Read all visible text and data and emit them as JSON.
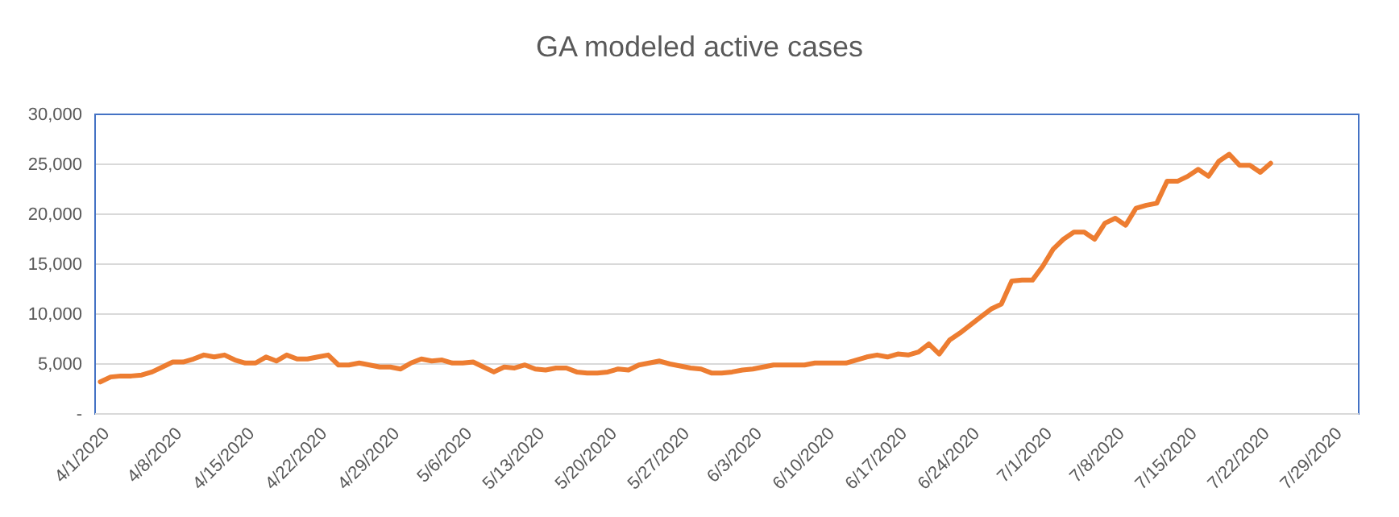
{
  "chart_data": {
    "type": "line",
    "title": "GA modeled active cases",
    "x": [
      "2020-03-31",
      "2020-04-01",
      "2020-04-02",
      "2020-04-03",
      "2020-04-04",
      "2020-04-05",
      "2020-04-06",
      "2020-04-07",
      "2020-04-08",
      "2020-04-09",
      "2020-04-10",
      "2020-04-11",
      "2020-04-12",
      "2020-04-13",
      "2020-04-14",
      "2020-04-15",
      "2020-04-16",
      "2020-04-17",
      "2020-04-18",
      "2020-04-19",
      "2020-04-20",
      "2020-04-21",
      "2020-04-22",
      "2020-04-23",
      "2020-04-24",
      "2020-04-25",
      "2020-04-26",
      "2020-04-27",
      "2020-04-28",
      "2020-04-29",
      "2020-04-30",
      "2020-05-01",
      "2020-05-02",
      "2020-05-03",
      "2020-05-04",
      "2020-05-05",
      "2020-05-06",
      "2020-05-07",
      "2020-05-08",
      "2020-05-09",
      "2020-05-10",
      "2020-05-11",
      "2020-05-12",
      "2020-05-13",
      "2020-05-14",
      "2020-05-15",
      "2020-05-16",
      "2020-05-17",
      "2020-05-18",
      "2020-05-19",
      "2020-05-20",
      "2020-05-21",
      "2020-05-22",
      "2020-05-23",
      "2020-05-24",
      "2020-05-25",
      "2020-05-26",
      "2020-05-27",
      "2020-05-28",
      "2020-05-29",
      "2020-05-30",
      "2020-05-31",
      "2020-06-01",
      "2020-06-02",
      "2020-06-03",
      "2020-06-04",
      "2020-06-05",
      "2020-06-06",
      "2020-06-07",
      "2020-06-08",
      "2020-06-09",
      "2020-06-10",
      "2020-06-11",
      "2020-06-12",
      "2020-06-13",
      "2020-06-14",
      "2020-06-15",
      "2020-06-16",
      "2020-06-17",
      "2020-06-18",
      "2020-06-19",
      "2020-06-20",
      "2020-06-21",
      "2020-06-22",
      "2020-06-23",
      "2020-06-24",
      "2020-06-25",
      "2020-06-26",
      "2020-06-27",
      "2020-06-28",
      "2020-06-29",
      "2020-06-30",
      "2020-07-01",
      "2020-07-02",
      "2020-07-03",
      "2020-07-04",
      "2020-07-05",
      "2020-07-06",
      "2020-07-07",
      "2020-07-08",
      "2020-07-09",
      "2020-07-10",
      "2020-07-11",
      "2020-07-12",
      "2020-07-13",
      "2020-07-14",
      "2020-07-15",
      "2020-07-16",
      "2020-07-17",
      "2020-07-18",
      "2020-07-19",
      "2020-07-20",
      "2020-07-21",
      "2020-07-22"
    ],
    "series": [
      {
        "color": "#ed7d31",
        "values": [
          3200,
          3700,
          3800,
          3800,
          3900,
          4200,
          4700,
          5200,
          5200,
          5500,
          5900,
          5700,
          5900,
          5400,
          5100,
          5100,
          5700,
          5300,
          5900,
          5500,
          5500,
          5700,
          5900,
          4900,
          4900,
          5100,
          4900,
          4700,
          4700,
          4500,
          5100,
          5500,
          5300,
          5400,
          5100,
          5100,
          5200,
          4700,
          4200,
          4700,
          4600,
          4900,
          4500,
          4400,
          4600,
          4600,
          4200,
          4100,
          4100,
          4200,
          4500,
          4400,
          4900,
          5100,
          5300,
          5000,
          4800,
          4600,
          4500,
          4100,
          4100,
          4200,
          4400,
          4500,
          4700,
          4900,
          4900,
          4900,
          4900,
          5100,
          5100,
          5100,
          5100,
          5400,
          5700,
          5900,
          5700,
          6000,
          5900,
          6200,
          7000,
          6000,
          7400,
          8100,
          8900,
          9700,
          10500,
          11000,
          13300,
          13400,
          13400,
          14800,
          16500,
          17500,
          18200,
          18200,
          17500,
          19100,
          19600,
          18900,
          20600,
          20900,
          21100,
          23300,
          23300,
          23800,
          24500,
          23800,
          25300,
          26000,
          24900,
          24900,
          24200,
          25100
        ]
      }
    ],
    "xlim": [
      "2020-03-30T12:00",
      "2020-07-30T12:00"
    ],
    "xticks": [
      {
        "value": "2020-04-01",
        "label": "4/1/2020"
      },
      {
        "value": "2020-04-08",
        "label": "4/8/2020"
      },
      {
        "value": "2020-04-15",
        "label": "4/15/2020"
      },
      {
        "value": "2020-04-22",
        "label": "4/22/2020"
      },
      {
        "value": "2020-04-29",
        "label": "4/29/2020"
      },
      {
        "value": "2020-05-06",
        "label": "5/6/2020"
      },
      {
        "value": "2020-05-13",
        "label": "5/13/2020"
      },
      {
        "value": "2020-05-20",
        "label": "5/20/2020"
      },
      {
        "value": "2020-05-27",
        "label": "5/27/2020"
      },
      {
        "value": "2020-06-03",
        "label": "6/3/2020"
      },
      {
        "value": "2020-06-10",
        "label": "6/10/2020"
      },
      {
        "value": "2020-06-17",
        "label": "6/17/2020"
      },
      {
        "value": "2020-06-24",
        "label": "6/24/2020"
      },
      {
        "value": "2020-07-01",
        "label": "7/1/2020"
      },
      {
        "value": "2020-07-08",
        "label": "7/8/2020"
      },
      {
        "value": "2020-07-15",
        "label": "7/15/2020"
      },
      {
        "value": "2020-07-22",
        "label": "7/22/2020"
      },
      {
        "value": "2020-07-29",
        "label": "7/29/2020"
      }
    ],
    "ylim": [
      0,
      30000
    ],
    "yticks": [
      {
        "value": 0,
        "label": "-"
      },
      {
        "value": 5000,
        "label": "5,000"
      },
      {
        "value": 10000,
        "label": "10,000"
      },
      {
        "value": 15000,
        "label": "15,000"
      },
      {
        "value": 20000,
        "label": "20,000"
      },
      {
        "value": 25000,
        "label": "25,000"
      },
      {
        "value": 30000,
        "label": "30,000"
      }
    ],
    "grid": "y",
    "marker": "none",
    "line_style": "solid"
  }
}
